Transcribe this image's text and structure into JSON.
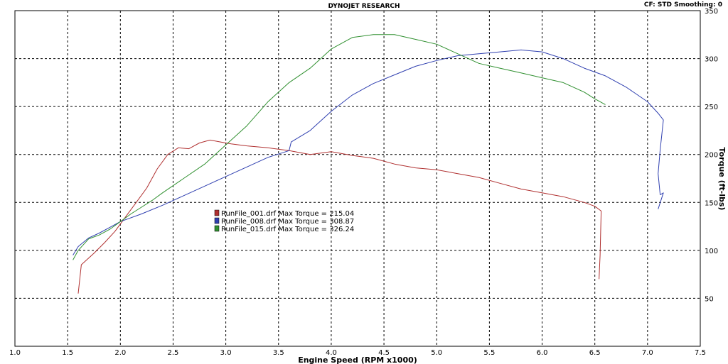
{
  "header": {
    "title": "DYNOJET RESEARCH",
    "status": "CF: STD  Smoothing: 0"
  },
  "chart_data": {
    "type": "line",
    "title": "DYNOJET RESEARCH",
    "xlabel": "Engine Speed (RPM x1000)",
    "ylabel": "Torque (ft-lbs)",
    "xlim": [
      1.0,
      7.5
    ],
    "ylim": [
      0,
      350
    ],
    "x_ticks": [
      "1.0",
      "1.5",
      "2.0",
      "2.5",
      "3.0",
      "3.5",
      "4.0",
      "4.5",
      "5.0",
      "5.5",
      "6.0",
      "6.5",
      "7.0",
      "7.5"
    ],
    "y_ticks": [
      "50",
      "100",
      "150",
      "200",
      "250",
      "300",
      "350"
    ],
    "grid": true,
    "legend_position": "center-left",
    "series": [
      {
        "name": "RunFile_001.drf Max Torque = 215.04",
        "color": "#b03030",
        "x": [
          1.6,
          1.63,
          1.68,
          1.75,
          1.85,
          1.95,
          2.05,
          2.15,
          2.25,
          2.35,
          2.45,
          2.55,
          2.65,
          2.75,
          2.85,
          2.95,
          3.05,
          3.2,
          3.4,
          3.6,
          3.8,
          4.0,
          4.2,
          4.4,
          4.6,
          4.8,
          5.0,
          5.2,
          5.4,
          5.6,
          5.8,
          6.0,
          6.2,
          6.4,
          6.5,
          6.56,
          6.55,
          6.54
        ],
        "y": [
          55,
          85,
          90,
          97,
          108,
          120,
          135,
          150,
          165,
          185,
          200,
          207,
          206,
          212,
          215,
          213,
          211,
          209,
          207,
          204,
          200,
          203,
          199,
          196,
          190,
          186,
          184,
          180,
          176,
          170,
          164,
          160,
          156,
          150,
          146,
          141,
          95,
          70
        ]
      },
      {
        "name": "RunFile_008.drf Max Torque = 308.87",
        "color": "#3040b0",
        "x": [
          1.55,
          1.6,
          1.7,
          1.8,
          1.9,
          2.0,
          2.2,
          2.4,
          2.6,
          2.8,
          3.0,
          3.2,
          3.4,
          3.6,
          3.62,
          3.8,
          4.0,
          4.2,
          4.4,
          4.6,
          4.8,
          5.0,
          5.2,
          5.4,
          5.6,
          5.8,
          6.0,
          6.2,
          6.4,
          6.6,
          6.8,
          7.0,
          7.1,
          7.15,
          7.12,
          7.1,
          7.12,
          7.15,
          7.1
        ],
        "y": [
          95,
          104,
          113,
          118,
          124,
          130,
          138,
          147,
          157,
          167,
          177,
          187,
          197,
          204,
          213,
          225,
          245,
          262,
          274,
          283,
          292,
          298,
          303,
          305,
          307,
          309,
          307,
          300,
          290,
          282,
          270,
          255,
          243,
          236,
          205,
          180,
          158,
          160,
          143
        ]
      },
      {
        "name": "RunFile_015.drf Max Torque = 326.24",
        "color": "#309030",
        "x": [
          1.55,
          1.6,
          1.7,
          1.8,
          1.9,
          2.0,
          2.1,
          2.2,
          2.3,
          2.4,
          2.6,
          2.8,
          3.0,
          3.2,
          3.4,
          3.6,
          3.8,
          4.0,
          4.2,
          4.4,
          4.6,
          4.8,
          5.0,
          5.2,
          5.4,
          5.6,
          5.8,
          6.0,
          6.2,
          6.4,
          6.5,
          6.6
        ],
        "y": [
          90,
          100,
          112,
          116,
          122,
          130,
          138,
          145,
          152,
          160,
          175,
          190,
          210,
          230,
          255,
          275,
          290,
          310,
          322,
          325,
          325,
          320,
          315,
          305,
          295,
          290,
          285,
          280,
          275,
          265,
          258,
          252
        ]
      }
    ]
  }
}
